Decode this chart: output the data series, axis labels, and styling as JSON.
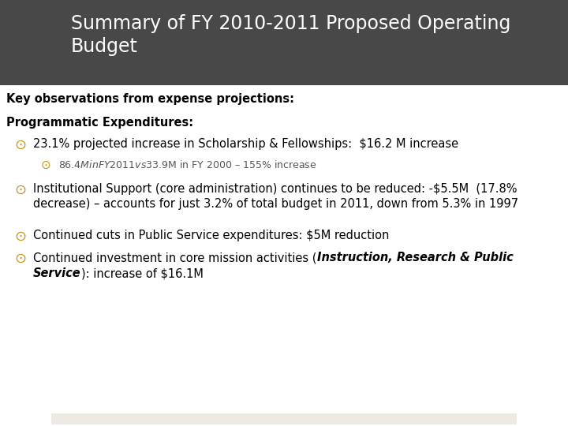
{
  "title_line1": "Summary of FY 2010-2011 Proposed Operating",
  "title_line2": "Budget",
  "title_bg_color": "#484848",
  "title_text_color": "#ffffff",
  "body_bg_color": "#ffffff",
  "footer_bg_color": "#ede9e3",
  "subheading": "Key observations from expense projections:",
  "section_heading": "Programmatic Expenditures:",
  "bullet_color": "#c8921a",
  "bullet1": "23.1% projected increase in Scholarship & Fellowships:  $16.2 M increase",
  "sub_bullet1": "$86.4M in FY 2011 vs $33.9M in FY 2000 – 155% increase",
  "bullet2_line1": "Institutional Support (core administration) continues to be reduced: -$5.5M  (17.8%",
  "bullet2_line2": "decrease) – accounts for just 3.2% of total budget in 2011, down from 5.3% in 1997",
  "bullet3": "Continued cuts in Public Service expenditures: $5M reduction",
  "bullet4_pre": "Continued investment in core mission activities (",
  "bullet4_ib1": "Instruction, Research & Public",
  "bullet4_ib2": "Service",
  "bullet4_post": "): increase of $16.1M"
}
